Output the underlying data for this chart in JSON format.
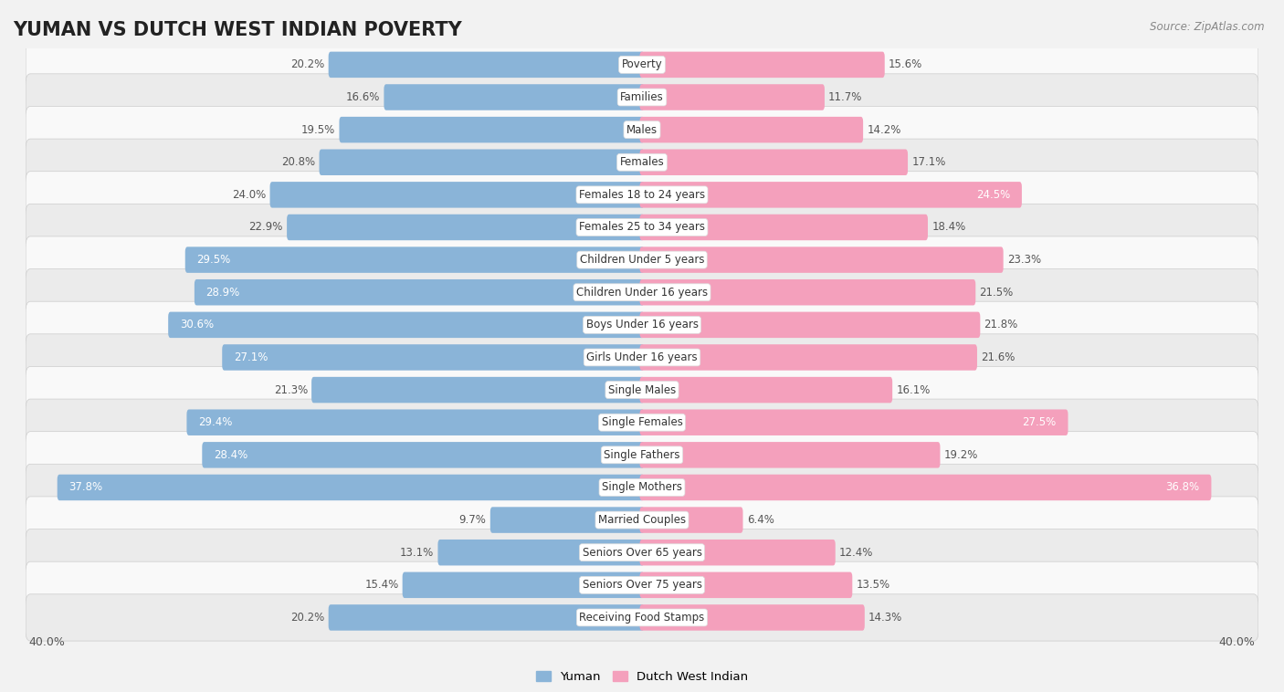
{
  "title": "YUMAN VS DUTCH WEST INDIAN POVERTY",
  "source": "Source: ZipAtlas.com",
  "categories": [
    "Poverty",
    "Families",
    "Males",
    "Females",
    "Females 18 to 24 years",
    "Females 25 to 34 years",
    "Children Under 5 years",
    "Children Under 16 years",
    "Boys Under 16 years",
    "Girls Under 16 years",
    "Single Males",
    "Single Females",
    "Single Fathers",
    "Single Mothers",
    "Married Couples",
    "Seniors Over 65 years",
    "Seniors Over 75 years",
    "Receiving Food Stamps"
  ],
  "yuman_values": [
    20.2,
    16.6,
    19.5,
    20.8,
    24.0,
    22.9,
    29.5,
    28.9,
    30.6,
    27.1,
    21.3,
    29.4,
    28.4,
    37.8,
    9.7,
    13.1,
    15.4,
    20.2
  ],
  "dutch_values": [
    15.6,
    11.7,
    14.2,
    17.1,
    24.5,
    18.4,
    23.3,
    21.5,
    21.8,
    21.6,
    16.1,
    27.5,
    19.2,
    36.8,
    6.4,
    12.4,
    13.5,
    14.3
  ],
  "yuman_color": "#8ab4d8",
  "dutch_color": "#f4a0bc",
  "axis_max": 40.0,
  "background_color": "#f2f2f2",
  "row_light": "#f9f9f9",
  "row_dark": "#ebebeb",
  "title_fontsize": 15,
  "cat_fontsize": 8.5,
  "val_fontsize": 8.5,
  "legend_labels": [
    "Yuman",
    "Dutch West Indian"
  ],
  "highlight_yuman": [
    29.5,
    28.9,
    30.6,
    27.1,
    29.4,
    28.4,
    37.8
  ],
  "highlight_dutch": [
    24.5,
    27.5,
    36.8
  ]
}
